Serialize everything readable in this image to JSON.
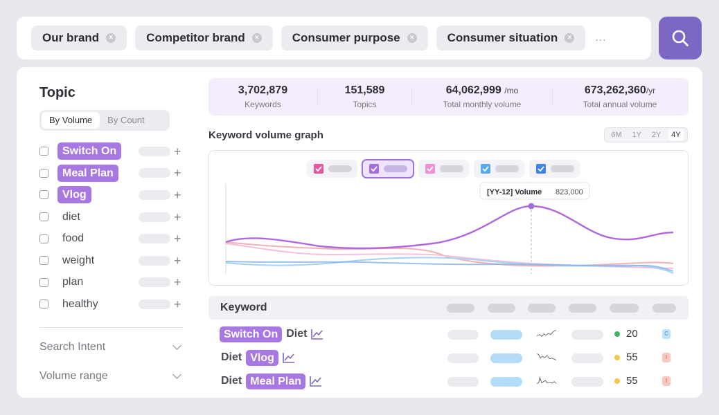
{
  "search": {
    "chips": [
      "Our brand",
      "Competitor brand",
      "Consumer purpose",
      "Consumer situation"
    ],
    "more": "...",
    "button_icon": "search-icon",
    "chip_remove_icon": "close-icon"
  },
  "topic": {
    "title": "Topic",
    "tabs": [
      "By Volume",
      "By Count"
    ],
    "active_tab": "By Volume",
    "items": [
      {
        "label": "Switch On",
        "highlight": true
      },
      {
        "label": "Meal Plan",
        "highlight": true
      },
      {
        "label": "Vlog",
        "highlight": true
      },
      {
        "label": "diet",
        "highlight": false
      },
      {
        "label": "food",
        "highlight": false
      },
      {
        "label": "weight",
        "highlight": false
      },
      {
        "label": "plan",
        "highlight": false
      },
      {
        "label": "healthy",
        "highlight": false
      }
    ],
    "add_icon": "plus-icon",
    "filters": [
      {
        "label": "Search Intent",
        "icon": "chevron-down-icon"
      },
      {
        "label": "Volume range",
        "icon": "chevron-down-icon"
      }
    ]
  },
  "stats": [
    {
      "value": "3,702,879",
      "unit": "",
      "label": "Keywords"
    },
    {
      "value": "151,589",
      "unit": "",
      "label": "Topics"
    },
    {
      "value": "64,062,999",
      "unit": "/mo",
      "label": "Total monthly volume"
    },
    {
      "value": "673,262,360",
      "unit": "/yr",
      "label": "Total annual volume"
    }
  ],
  "graph": {
    "title": "Keyword volume graph",
    "ranges": [
      "6M",
      "1Y",
      "2Y",
      "4Y"
    ],
    "active_range": "4Y",
    "legend_colors": [
      "#e8579b",
      "#a46ee0",
      "#f08fd6",
      "#5aa9ee",
      "#3d86e6"
    ],
    "tooltip_label": "[YY-12] Volume",
    "tooltip_value": "823,000"
  },
  "keywords": {
    "header": "Keyword",
    "rows": [
      {
        "parts": [
          {
            "text": "Switch On",
            "tag": true
          },
          {
            "text": "Diet",
            "tag": false
          }
        ],
        "score": "20",
        "score_color": "#3fb463",
        "badge": "C",
        "badge_color": "#bfe3fb",
        "badge_text_color": "#4a90c9"
      },
      {
        "parts": [
          {
            "text": "Diet",
            "tag": false
          },
          {
            "text": "Vlog",
            "tag": true
          }
        ],
        "score": "55",
        "score_color": "#f2c94c",
        "badge": "I",
        "badge_color": "#f8c8bf",
        "badge_text_color": "#d0544a"
      },
      {
        "parts": [
          {
            "text": "Diet",
            "tag": false
          },
          {
            "text": "Meal Plan",
            "tag": true
          }
        ],
        "score": "55",
        "score_color": "#f2c94c",
        "badge": "I",
        "badge_color": "#f8c8bf",
        "badge_text_color": "#d0544a"
      }
    ],
    "trend_icon": "trend-chart-icon"
  },
  "colors": {
    "accent": "#7d67c4",
    "tag": "#a777e2",
    "stats_bg": "#f4eefc"
  }
}
